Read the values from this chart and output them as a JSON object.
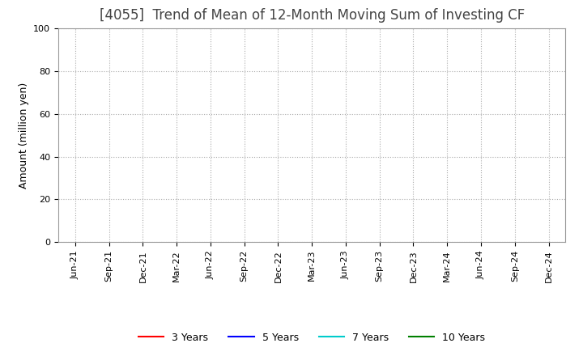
{
  "title": "[4055]  Trend of Mean of 12-Month Moving Sum of Investing CF",
  "ylabel": "Amount (million yen)",
  "ylim": [
    0,
    100
  ],
  "yticks": [
    0,
    20,
    40,
    60,
    80,
    100
  ],
  "background_color": "#ffffff",
  "plot_background_color": "#ffffff",
  "grid_color": "#aaaaaa",
  "title_color": "#444444",
  "x_labels": [
    "Jun-21",
    "Sep-21",
    "Dec-21",
    "Mar-22",
    "Jun-22",
    "Sep-22",
    "Dec-22",
    "Mar-23",
    "Jun-23",
    "Sep-23",
    "Dec-23",
    "Mar-24",
    "Jun-24",
    "Sep-24",
    "Dec-24"
  ],
  "legend_entries": [
    {
      "label": "3 Years",
      "color": "#ff0000",
      "linewidth": 1.5
    },
    {
      "label": "5 Years",
      "color": "#0000ff",
      "linewidth": 1.5
    },
    {
      "label": "7 Years",
      "color": "#00cccc",
      "linewidth": 1.5
    },
    {
      "label": "10 Years",
      "color": "#008000",
      "linewidth": 1.5
    }
  ],
  "title_fontsize": 12,
  "axis_label_fontsize": 9,
  "tick_fontsize": 8,
  "legend_fontsize": 9,
  "figsize": [
    7.2,
    4.4
  ],
  "dpi": 100
}
